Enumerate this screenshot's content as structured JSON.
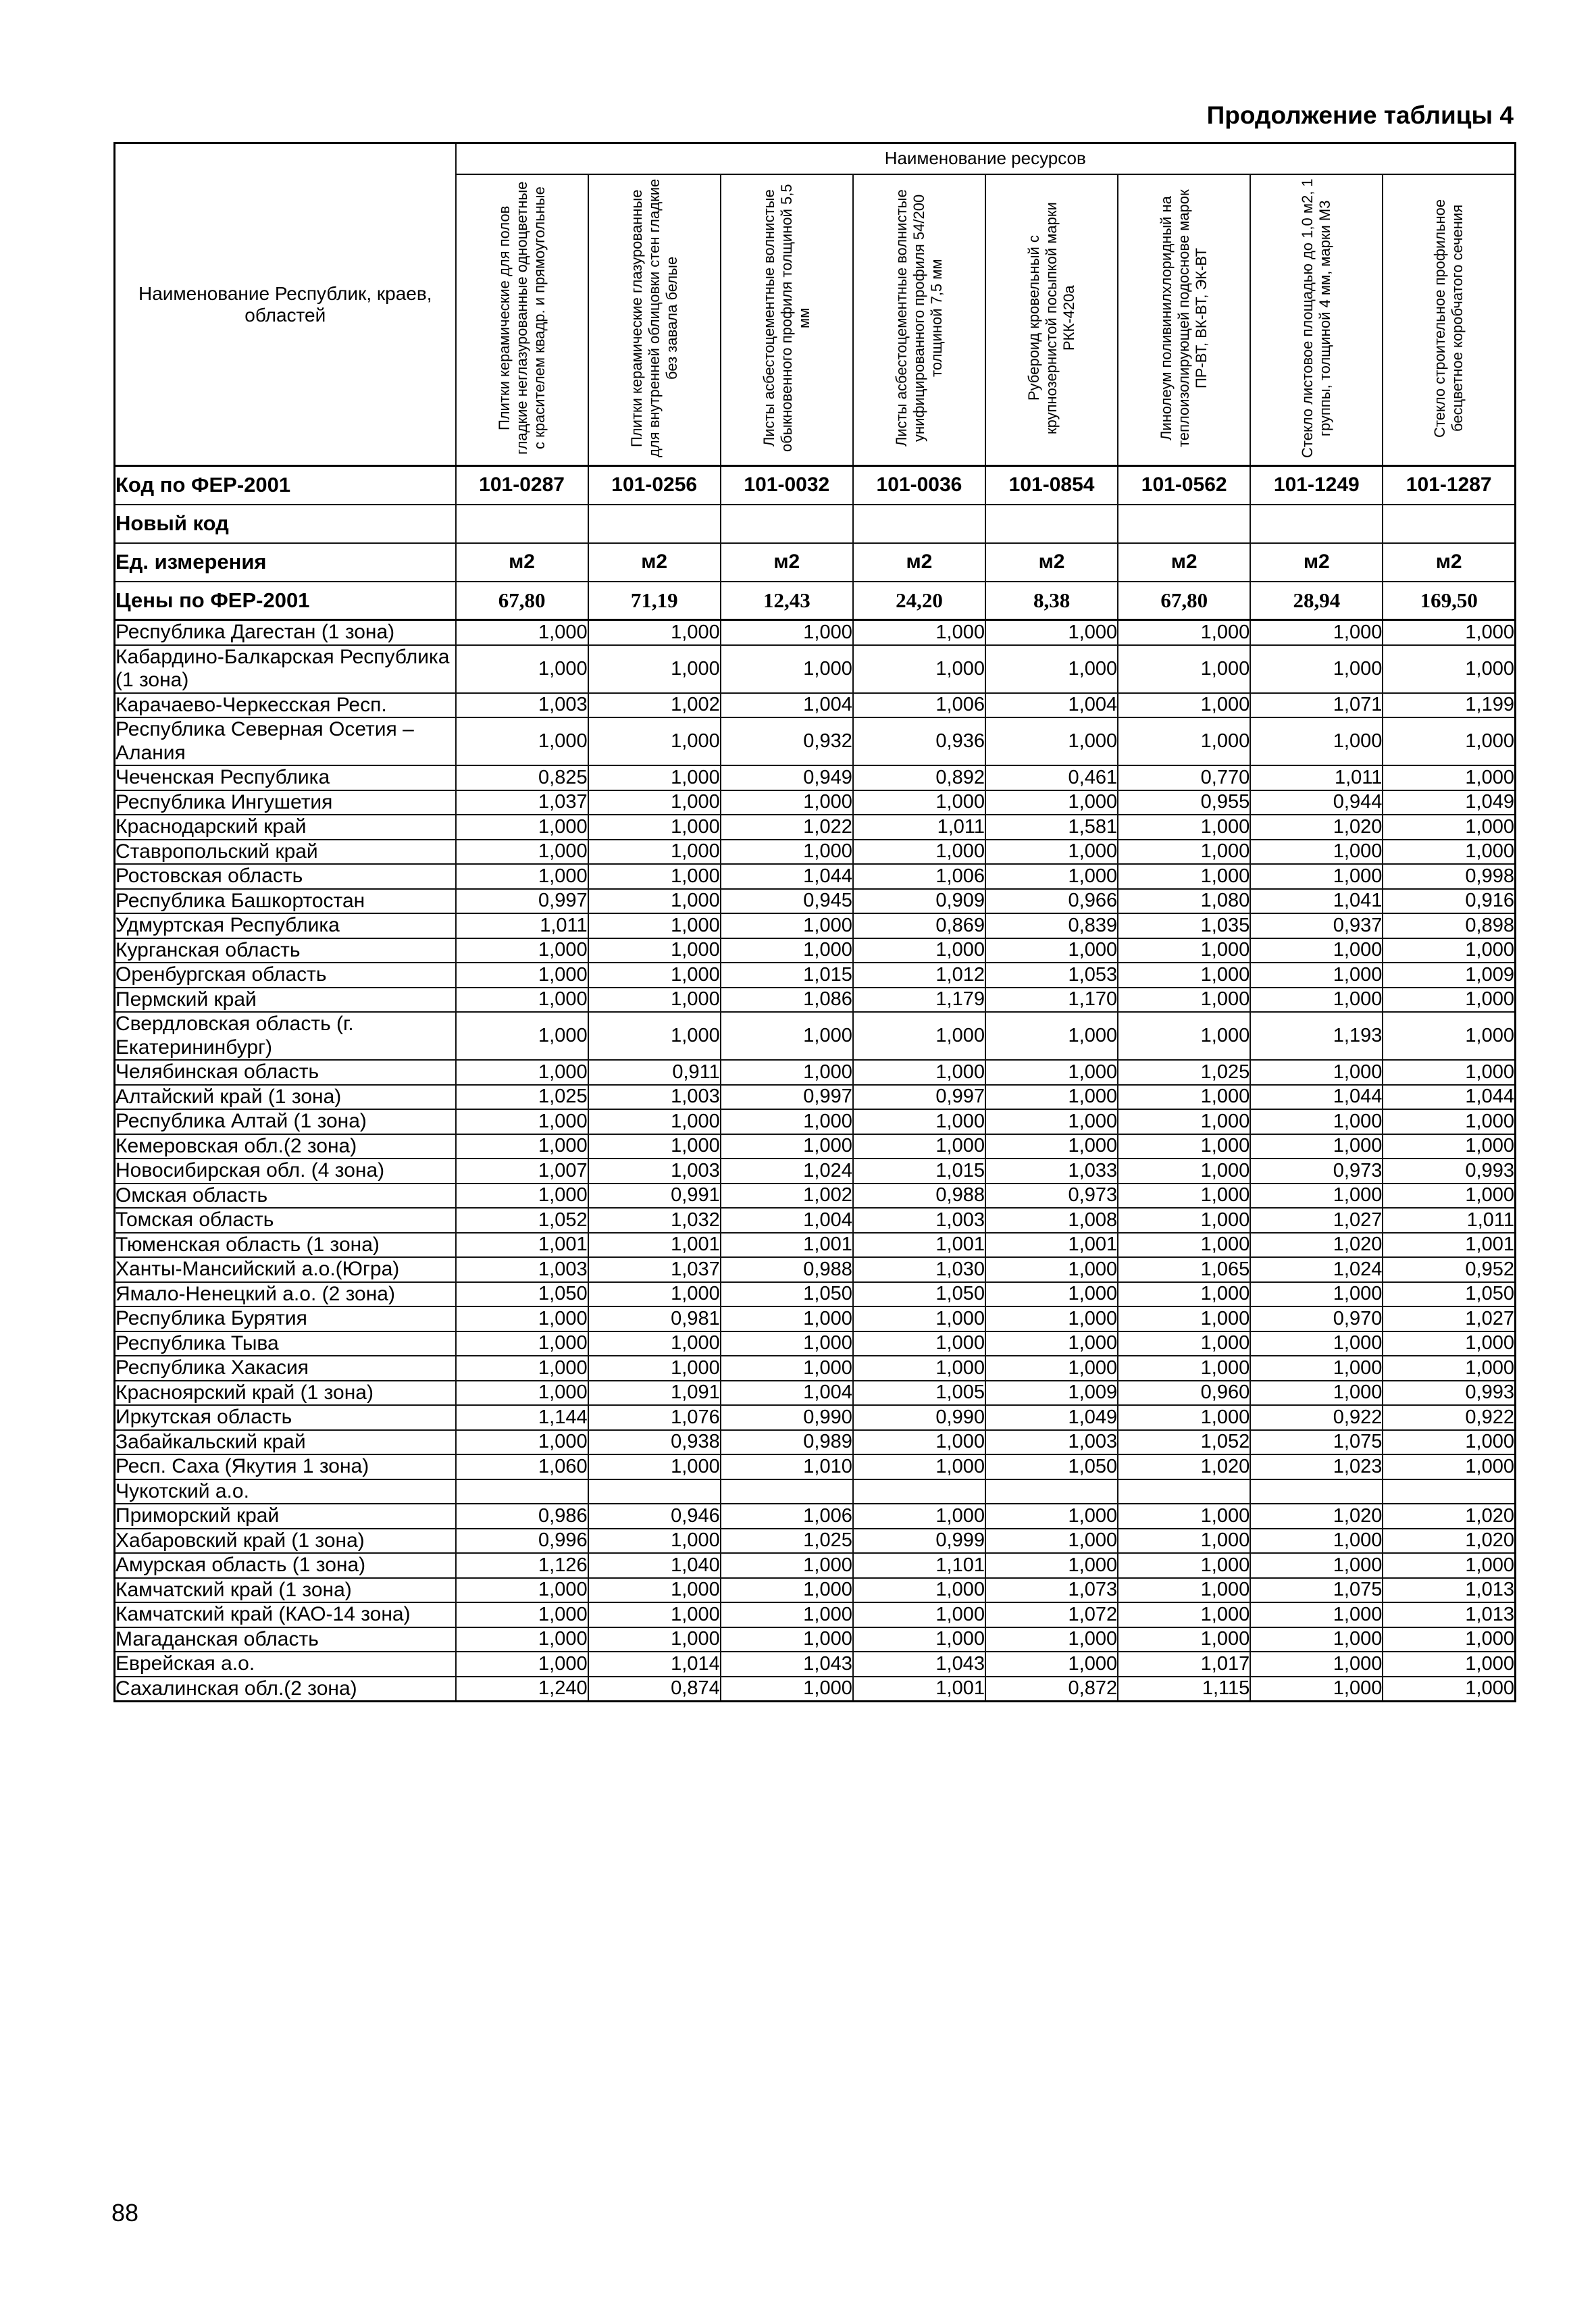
{
  "page": {
    "continuation_label": "Продолжение таблицы 4",
    "page_number": "88"
  },
  "table": {
    "resources_group_header": "Наименование ресурсов",
    "region_column_header": "Наименование Республик, краев, областей",
    "column_headers": [
      "Плитки керамические для полов гладкие неглазурованные одноцветные с красителем квадр. и прямоугольные",
      "Плитки керамические глазурованные для внутренней облицовки стен гладкие без завала белые",
      "Листы асбестоцементные волнистые обыкновенного профиля толщиной 5,5 мм",
      "Листы асбестоцементные волнистые унифицированного профиля 54/200 толщиной 7,5 мм",
      "Рубероид кровельный с крупнозернистой посыпкой марки РКК-420а",
      "Линолеум поливинилхлоридный на теплоизолирующей подоснове марок ПР-ВТ, ВК-ВТ, ЭК-ВТ",
      "Стекло листовое площадью до 1,0 м2, 1 группы, толщиной 4 мм, марки М3",
      "Стекло строительное профильное бесцветное коробчатого сечения"
    ],
    "meta_rows": [
      {
        "label": "Код по ФЕР-2001",
        "values": [
          "101-0287",
          "101-0256",
          "101-0032",
          "101-0036",
          "101-0854",
          "101-0562",
          "101-1249",
          "101-1287"
        ]
      },
      {
        "label": "Новый код",
        "values": [
          "",
          "",
          "",
          "",
          "",
          "",
          "",
          ""
        ]
      },
      {
        "label": "Ед. измерения",
        "values": [
          "м2",
          "м2",
          "м2",
          "м2",
          "м2",
          "м2",
          "м2",
          "м2"
        ]
      },
      {
        "label": "Цены по ФЕР-2001",
        "values": [
          "67,80",
          "71,19",
          "12,43",
          "24,20",
          "8,38",
          "67,80",
          "28,94",
          "169,50"
        ]
      }
    ],
    "rows": [
      {
        "name": "Республика Дагестан (1 зона)",
        "values": [
          "1,000",
          "1,000",
          "1,000",
          "1,000",
          "1,000",
          "1,000",
          "1,000",
          "1,000"
        ]
      },
      {
        "name": "Кабардино-Балкарская Республика (1 зона)",
        "values": [
          "1,000",
          "1,000",
          "1,000",
          "1,000",
          "1,000",
          "1,000",
          "1,000",
          "1,000"
        ]
      },
      {
        "name": "Карачаево-Черкесская Респ.",
        "values": [
          "1,003",
          "1,002",
          "1,004",
          "1,006",
          "1,004",
          "1,000",
          "1,071",
          "1,199"
        ]
      },
      {
        "name": "Республика Северная Осетия – Алания",
        "values": [
          "1,000",
          "1,000",
          "0,932",
          "0,936",
          "1,000",
          "1,000",
          "1,000",
          "1,000"
        ]
      },
      {
        "name": "Чеченская Республика",
        "values": [
          "0,825",
          "1,000",
          "0,949",
          "0,892",
          "0,461",
          "0,770",
          "1,011",
          "1,000"
        ]
      },
      {
        "name": "Республика Ингушетия",
        "values": [
          "1,037",
          "1,000",
          "1,000",
          "1,000",
          "1,000",
          "0,955",
          "0,944",
          "1,049"
        ]
      },
      {
        "name": "Краснодарский край",
        "values": [
          "1,000",
          "1,000",
          "1,022",
          "1,011",
          "1,581",
          "1,000",
          "1,020",
          "1,000"
        ]
      },
      {
        "name": "Ставропольский край",
        "values": [
          "1,000",
          "1,000",
          "1,000",
          "1,000",
          "1,000",
          "1,000",
          "1,000",
          "1,000"
        ]
      },
      {
        "name": "Ростовская область",
        "values": [
          "1,000",
          "1,000",
          "1,044",
          "1,006",
          "1,000",
          "1,000",
          "1,000",
          "0,998"
        ]
      },
      {
        "name": "Республика Башкортостан",
        "values": [
          "0,997",
          "1,000",
          "0,945",
          "0,909",
          "0,966",
          "1,080",
          "1,041",
          "0,916"
        ]
      },
      {
        "name": "Удмуртская Республика",
        "values": [
          "1,011",
          "1,000",
          "1,000",
          "0,869",
          "0,839",
          "1,035",
          "0,937",
          "0,898"
        ]
      },
      {
        "name": "Курганская область",
        "values": [
          "1,000",
          "1,000",
          "1,000",
          "1,000",
          "1,000",
          "1,000",
          "1,000",
          "1,000"
        ]
      },
      {
        "name": "Оренбургская область",
        "values": [
          "1,000",
          "1,000",
          "1,015",
          "1,012",
          "1,053",
          "1,000",
          "1,000",
          "1,009"
        ]
      },
      {
        "name": "Пермский край",
        "values": [
          "1,000",
          "1,000",
          "1,086",
          "1,179",
          "1,170",
          "1,000",
          "1,000",
          "1,000"
        ]
      },
      {
        "name": "Свердловская область (г. Екатерининбург)",
        "values": [
          "1,000",
          "1,000",
          "1,000",
          "1,000",
          "1,000",
          "1,000",
          "1,193",
          "1,000"
        ]
      },
      {
        "name": "Челябинская область",
        "values": [
          "1,000",
          "0,911",
          "1,000",
          "1,000",
          "1,000",
          "1,025",
          "1,000",
          "1,000"
        ]
      },
      {
        "name": "Алтайский край (1 зона)",
        "values": [
          "1,025",
          "1,003",
          "0,997",
          "0,997",
          "1,000",
          "1,000",
          "1,044",
          "1,044"
        ]
      },
      {
        "name": "Республика Алтай (1 зона)",
        "values": [
          "1,000",
          "1,000",
          "1,000",
          "1,000",
          "1,000",
          "1,000",
          "1,000",
          "1,000"
        ]
      },
      {
        "name": "Кемеровская обл.(2 зона)",
        "values": [
          "1,000",
          "1,000",
          "1,000",
          "1,000",
          "1,000",
          "1,000",
          "1,000",
          "1,000"
        ]
      },
      {
        "name": "Новосибирская обл. (4 зона)",
        "values": [
          "1,007",
          "1,003",
          "1,024",
          "1,015",
          "1,033",
          "1,000",
          "0,973",
          "0,993"
        ]
      },
      {
        "name": "Омская область",
        "values": [
          "1,000",
          "0,991",
          "1,002",
          "0,988",
          "0,973",
          "1,000",
          "1,000",
          "1,000"
        ]
      },
      {
        "name": "Томская область",
        "values": [
          "1,052",
          "1,032",
          "1,004",
          "1,003",
          "1,008",
          "1,000",
          "1,027",
          "1,011"
        ]
      },
      {
        "name": "Тюменская область (1 зона)",
        "values": [
          "1,001",
          "1,001",
          "1,001",
          "1,001",
          "1,001",
          "1,000",
          "1,020",
          "1,001"
        ]
      },
      {
        "name": "Ханты-Мансийский а.о.(Югра)",
        "values": [
          "1,003",
          "1,037",
          "0,988",
          "1,030",
          "1,000",
          "1,065",
          "1,024",
          "0,952"
        ]
      },
      {
        "name": "Ямало-Ненецкий а.о. (2 зона)",
        "values": [
          "1,050",
          "1,000",
          "1,050",
          "1,050",
          "1,000",
          "1,000",
          "1,000",
          "1,050"
        ]
      },
      {
        "name": "Республика Бурятия",
        "values": [
          "1,000",
          "0,981",
          "1,000",
          "1,000",
          "1,000",
          "1,000",
          "0,970",
          "1,027"
        ]
      },
      {
        "name": "Республика Тыва",
        "values": [
          "1,000",
          "1,000",
          "1,000",
          "1,000",
          "1,000",
          "1,000",
          "1,000",
          "1,000"
        ]
      },
      {
        "name": "Республика Хакасия",
        "values": [
          "1,000",
          "1,000",
          "1,000",
          "1,000",
          "1,000",
          "1,000",
          "1,000",
          "1,000"
        ]
      },
      {
        "name": "Красноярский край (1 зона)",
        "values": [
          "1,000",
          "1,091",
          "1,004",
          "1,005",
          "1,009",
          "0,960",
          "1,000",
          "0,993"
        ]
      },
      {
        "name": "Иркутская область",
        "values": [
          "1,144",
          "1,076",
          "0,990",
          "0,990",
          "1,049",
          "1,000",
          "0,922",
          "0,922"
        ]
      },
      {
        "name": "Забайкальский край",
        "values": [
          "1,000",
          "0,938",
          "0,989",
          "1,000",
          "1,003",
          "1,052",
          "1,075",
          "1,000"
        ]
      },
      {
        "name": "Респ. Саха (Якутия 1 зона)",
        "values": [
          "1,060",
          "1,000",
          "1,010",
          "1,000",
          "1,050",
          "1,020",
          "1,023",
          "1,000"
        ]
      },
      {
        "name": "Чукотский а.о.",
        "values": [
          "",
          "",
          "",
          "",
          "",
          "",
          "",
          ""
        ]
      },
      {
        "name": "Приморский край",
        "values": [
          "0,986",
          "0,946",
          "1,006",
          "1,000",
          "1,000",
          "1,000",
          "1,020",
          "1,020"
        ]
      },
      {
        "name": "Хабаровский край (1 зона)",
        "values": [
          "0,996",
          "1,000",
          "1,025",
          "0,999",
          "1,000",
          "1,000",
          "1,000",
          "1,020"
        ]
      },
      {
        "name": "Амурская область (1 зона)",
        "values": [
          "1,126",
          "1,040",
          "1,000",
          "1,101",
          "1,000",
          "1,000",
          "1,000",
          "1,000"
        ]
      },
      {
        "name": "Камчатский край (1 зона)",
        "values": [
          "1,000",
          "1,000",
          "1,000",
          "1,000",
          "1,073",
          "1,000",
          "1,075",
          "1,013"
        ]
      },
      {
        "name": "Камчатский край (КАО-14 зона)",
        "values": [
          "1,000",
          "1,000",
          "1,000",
          "1,000",
          "1,072",
          "1,000",
          "1,000",
          "1,013"
        ]
      },
      {
        "name": "Магаданская область",
        "values": [
          "1,000",
          "1,000",
          "1,000",
          "1,000",
          "1,000",
          "1,000",
          "1,000",
          "1,000"
        ]
      },
      {
        "name": "Еврейская а.о.",
        "values": [
          "1,000",
          "1,014",
          "1,043",
          "1,043",
          "1,000",
          "1,017",
          "1,000",
          "1,000"
        ]
      },
      {
        "name": "Сахалинская обл.(2 зона)",
        "values": [
          "1,240",
          "0,874",
          "1,000",
          "1,001",
          "0,872",
          "1,115",
          "1,000",
          "1,000"
        ]
      }
    ]
  }
}
